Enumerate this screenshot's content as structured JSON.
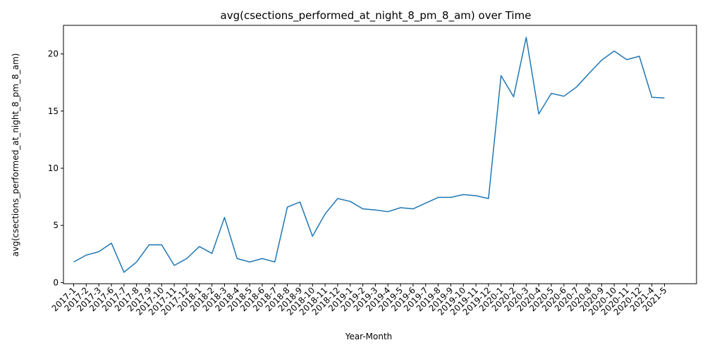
{
  "chart_data": {
    "type": "line",
    "title": "avg(csections_performed_at_night_8_pm_8_am) over Time",
    "xlabel": "Year-Month",
    "ylabel": "avg(csections_performed_at_night_8_pm_8_am)",
    "ylim": [
      -0.1,
      22.5
    ],
    "yticks": [
      0,
      5,
      10,
      15,
      20
    ],
    "grid": false,
    "line_color": "#1f77b4",
    "categories": [
      "2017-1",
      "2017-2",
      "2017-3",
      "2017-6",
      "2017-7",
      "2017-8",
      "2017-9",
      "2017-10",
      "2017-11",
      "2017-12",
      "2018-1",
      "2018-2",
      "2018-3",
      "2018-4",
      "2018-5",
      "2018-6",
      "2018-7",
      "2018-8",
      "2018-9",
      "2018-10",
      "2018-11",
      "2018-12",
      "2019-1",
      "2019-2",
      "2019-3",
      "2019-4",
      "2019-5",
      "2019-6",
      "2019-7",
      "2019-8",
      "2019-9",
      "2019-10",
      "2019-11",
      "2019-12",
      "2020-1",
      "2020-2",
      "2020-3",
      "2020-4",
      "2020-5",
      "2020-6",
      "2020-7",
      "2020-8",
      "2020-9",
      "2020-10",
      "2020-11",
      "2020-12",
      "2021-4",
      "2021-5"
    ],
    "series": [
      {
        "values": [
          1.8,
          2.4,
          2.7,
          3.45,
          0.9,
          1.8,
          3.3,
          3.3,
          1.5,
          2.1,
          3.15,
          2.55,
          5.7,
          2.1,
          1.8,
          2.1,
          1.8,
          6.6,
          7.05,
          4.05,
          6.0,
          7.35,
          7.1,
          6.45,
          6.35,
          6.2,
          6.55,
          6.45,
          6.95,
          7.45,
          7.45,
          7.7,
          7.6,
          7.35,
          18.1,
          16.25,
          21.45,
          14.75,
          16.55,
          16.3,
          17.1,
          18.3,
          19.45,
          20.25,
          19.5,
          19.8,
          16.2,
          16.15
        ]
      }
    ]
  }
}
